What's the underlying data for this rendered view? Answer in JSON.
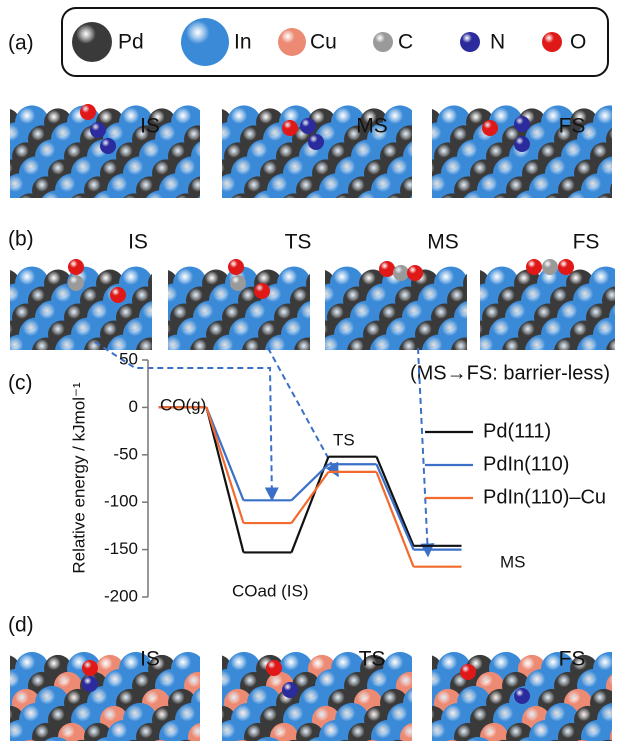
{
  "legend": [
    {
      "label": "Pd",
      "color": "#3a3a3a"
    },
    {
      "label": "In",
      "color": "#3a8ad8"
    },
    {
      "label": "Cu",
      "color": "#ec8a74"
    },
    {
      "label": "C",
      "color": "#9a9a9a"
    },
    {
      "label": "N",
      "color": "#2b2b9e"
    },
    {
      "label": "O",
      "color": "#e01818"
    }
  ],
  "panels": {
    "a": {
      "label": "(a)",
      "images": [
        "IS",
        "MS",
        "FS"
      ]
    },
    "b": {
      "label": "(b)",
      "images": [
        "IS",
        "TS",
        "MS",
        "FS"
      ],
      "note": "(MS→FS: barrier-less)"
    },
    "c": {
      "label": "(c)"
    },
    "d": {
      "label": "(d)",
      "images": [
        "IS",
        "TS",
        "FS"
      ]
    }
  },
  "chart_data": {
    "type": "energy_profile",
    "ylabel": "Relative energy / kJmol⁻¹",
    "categories": [
      "CO(g)",
      "COad (IS)",
      "TS",
      "MS"
    ],
    "series": [
      {
        "name": "Pd(111)",
        "color": "#111111",
        "values": [
          0,
          -153,
          -52,
          -146
        ]
      },
      {
        "name": "PdIn(110)",
        "color": "#3a70c8",
        "values": [
          0,
          -98,
          -60,
          -150
        ]
      },
      {
        "name": "PdIn(110)–Cu",
        "color": "#f26a2e",
        "values": [
          0,
          -122,
          -68,
          -168
        ]
      }
    ],
    "ylim": [
      -200,
      50
    ],
    "yticks": [
      -200,
      -150,
      -100,
      -50,
      0,
      50
    ]
  }
}
